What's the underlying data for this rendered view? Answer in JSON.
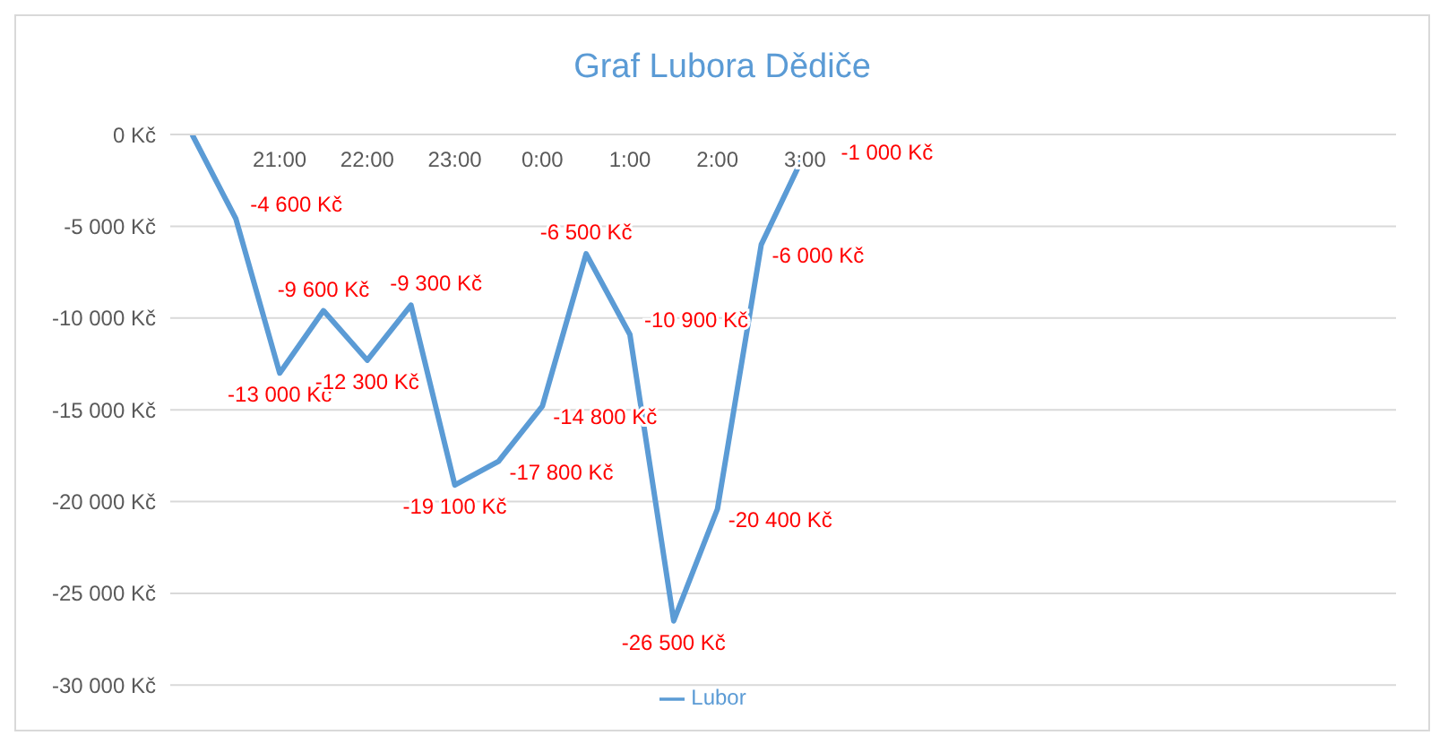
{
  "chart_data": {
    "type": "line",
    "title": "Graf Lubora Dědiče",
    "categories": [
      null,
      null,
      "21:00",
      null,
      "22:00",
      null,
      "23:00",
      null,
      "0:00",
      null,
      "1:00",
      null,
      "2:00",
      null,
      "3:00",
      null,
      null,
      null,
      null,
      null,
      null,
      null,
      null,
      null,
      null,
      null,
      null,
      null
    ],
    "series": [
      {
        "name": "Lubor",
        "color": "#5b9bd5",
        "values": [
          0,
          -4600,
          -13000,
          -9600,
          -12300,
          -9300,
          -19100,
          -17800,
          -14800,
          -6500,
          -10900,
          -26500,
          -20400,
          -6000,
          -1000,
          null,
          null,
          null,
          null,
          null,
          null,
          null,
          null,
          null,
          null,
          null,
          null,
          null
        ],
        "value_labels": [
          null,
          "-4 600 Kč",
          "-13 000 Kč",
          "-9 600 Kč",
          "-12 300 Kč",
          "-9 300 Kč",
          "-19 100 Kč",
          "-17 800 Kč",
          "-14 800 Kč",
          "-6 500 Kč",
          "-10 900 Kč",
          "-26 500 Kč",
          "-20 400 Kč",
          "-6 000 Kč",
          "-1 000 Kč",
          null,
          null,
          null,
          null,
          null,
          null,
          null,
          null,
          null,
          null,
          null,
          null,
          null
        ]
      }
    ],
    "ylim": [
      -30000,
      0
    ],
    "yticks": [
      {
        "value": 0,
        "label": "0 Kč"
      },
      {
        "value": -5000,
        "label": "-5 000 Kč"
      },
      {
        "value": -10000,
        "label": "-10 000 Kč"
      },
      {
        "value": -15000,
        "label": "-15 000 Kč"
      },
      {
        "value": -20000,
        "label": "-20 000 Kč"
      },
      {
        "value": -25000,
        "label": "-25 000 Kč"
      },
      {
        "value": -30000,
        "label": "-30 000 Kč"
      }
    ],
    "grid": "y",
    "legend": "bottom",
    "marker": "none",
    "line_style": "solid"
  }
}
